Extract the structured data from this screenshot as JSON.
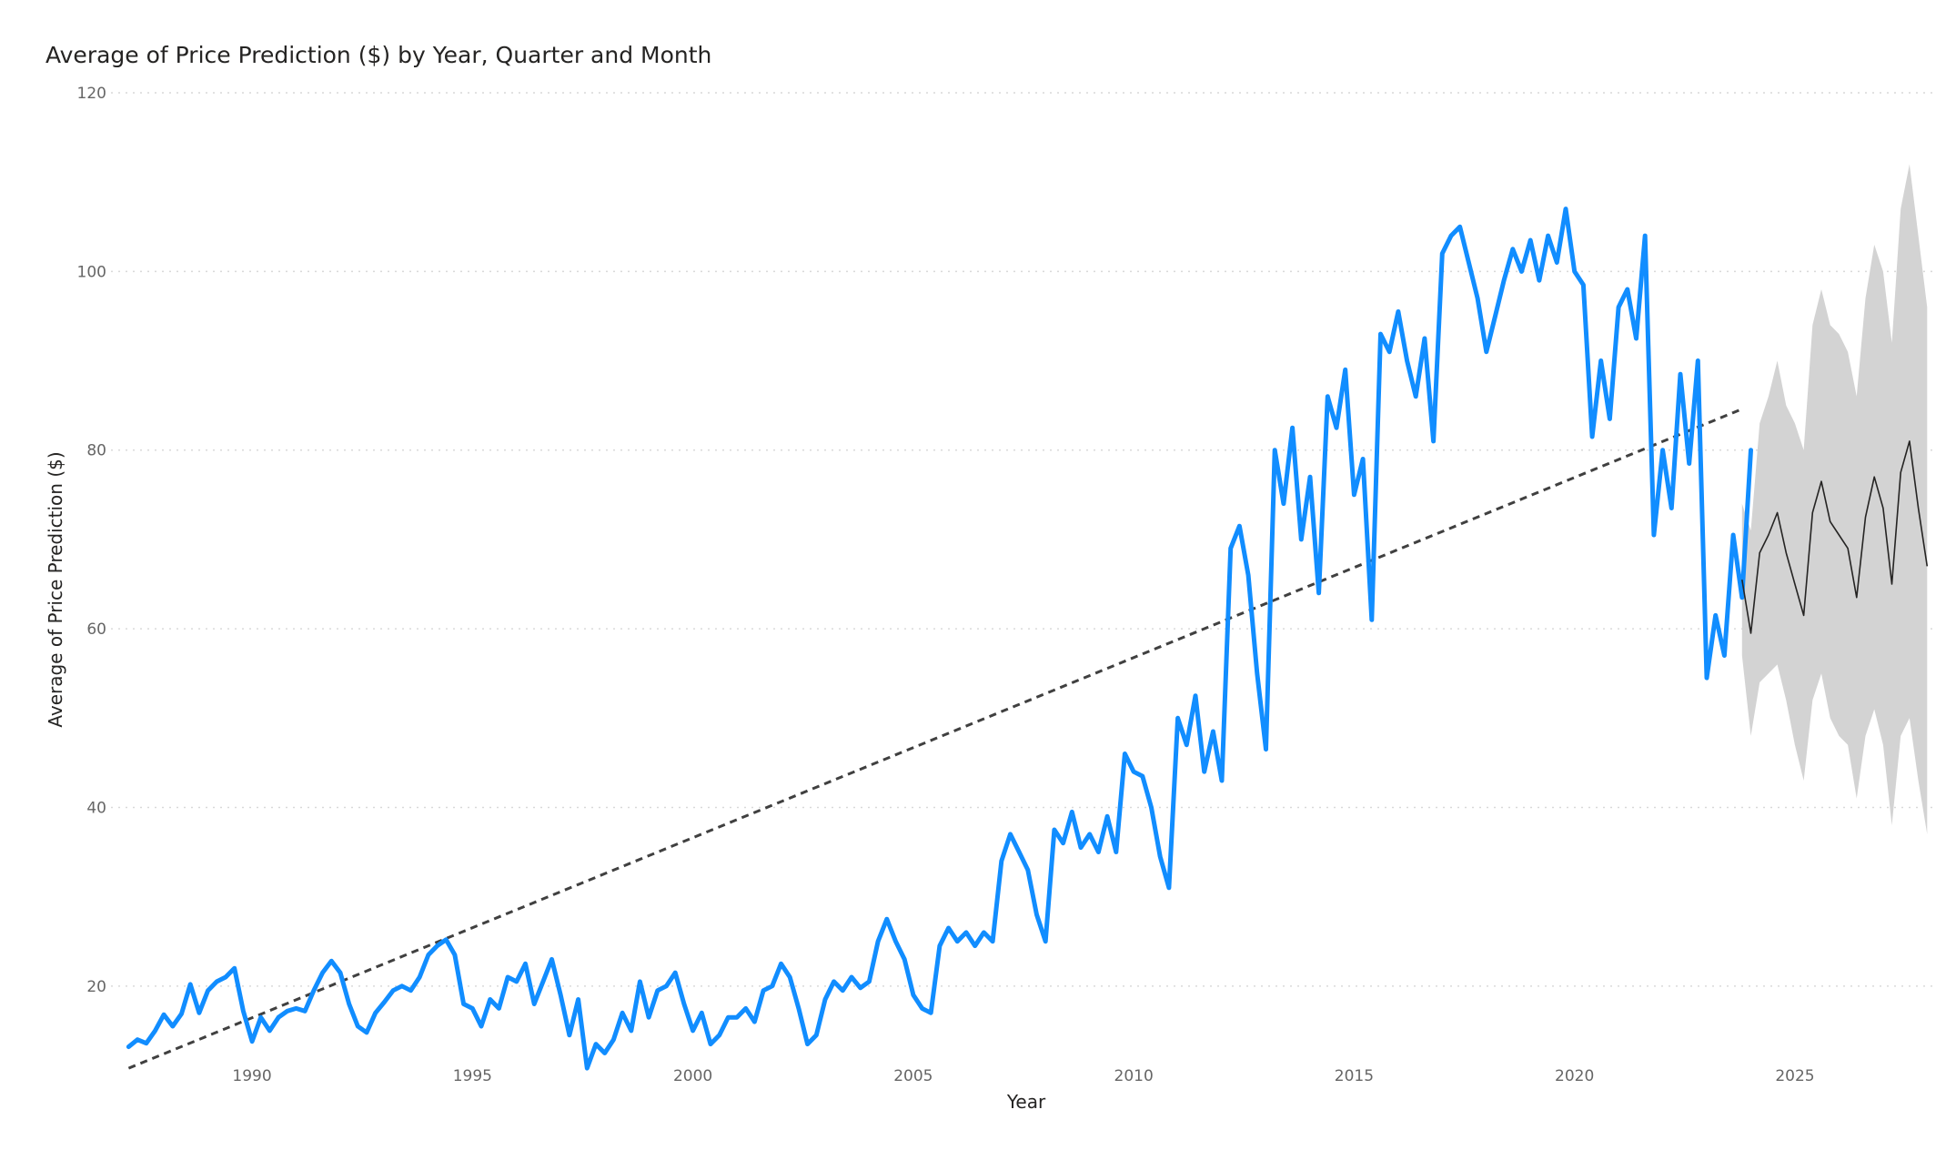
{
  "chart_data": {
    "type": "line",
    "title": "Average of Price Prediction ($) by Year, Quarter and Month",
    "xlabel": "Year",
    "ylabel": "Average of Price Prediction ($)",
    "xlim": [
      1986.8,
      2028.2
    ],
    "ylim": [
      10,
      120
    ],
    "x_ticks": [
      1990,
      1995,
      2000,
      2005,
      2010,
      2015,
      2020,
      2025
    ],
    "y_ticks": [
      20,
      40,
      60,
      80,
      100,
      120
    ],
    "grid": "horizontal dotted",
    "legend": "none",
    "colors": {
      "actual": "#118DFF",
      "trend": "#404040",
      "forecast": "#252423",
      "band": "#D3D3D3",
      "grid": "#D9D9D9"
    },
    "series": [
      {
        "kind": "actual",
        "points": [
          [
            1987.2,
            13.2
          ],
          [
            1987.4,
            14.0
          ],
          [
            1987.6,
            13.6
          ],
          [
            1987.8,
            15.0
          ],
          [
            1988.0,
            16.8
          ],
          [
            1988.2,
            15.5
          ],
          [
            1988.4,
            16.9
          ],
          [
            1988.6,
            20.2
          ],
          [
            1988.8,
            17.0
          ],
          [
            1989.0,
            19.5
          ],
          [
            1989.2,
            20.5
          ],
          [
            1989.4,
            21.0
          ],
          [
            1989.6,
            22.0
          ],
          [
            1989.8,
            17.2
          ],
          [
            1990.0,
            13.8
          ],
          [
            1990.2,
            16.5
          ],
          [
            1990.4,
            15.0
          ],
          [
            1990.6,
            16.5
          ],
          [
            1990.8,
            17.2
          ],
          [
            1991.0,
            17.5
          ],
          [
            1991.2,
            17.2
          ],
          [
            1991.4,
            19.5
          ],
          [
            1991.6,
            21.5
          ],
          [
            1991.8,
            22.8
          ],
          [
            1992.0,
            21.5
          ],
          [
            1992.2,
            18.0
          ],
          [
            1992.4,
            15.5
          ],
          [
            1992.6,
            14.8
          ],
          [
            1992.8,
            17.0
          ],
          [
            1993.0,
            18.2
          ],
          [
            1993.2,
            19.5
          ],
          [
            1993.4,
            20.0
          ],
          [
            1993.6,
            19.5
          ],
          [
            1993.8,
            21.0
          ],
          [
            1994.0,
            23.5
          ],
          [
            1994.2,
            24.5
          ],
          [
            1994.4,
            25.2
          ],
          [
            1994.6,
            23.5
          ],
          [
            1994.8,
            18.0
          ],
          [
            1995.0,
            17.5
          ],
          [
            1995.2,
            15.5
          ],
          [
            1995.4,
            18.5
          ],
          [
            1995.6,
            17.5
          ],
          [
            1995.8,
            21.0
          ],
          [
            1996.0,
            20.5
          ],
          [
            1996.2,
            22.5
          ],
          [
            1996.4,
            18.0
          ],
          [
            1996.6,
            20.5
          ],
          [
            1996.8,
            23.0
          ],
          [
            1997.0,
            19.0
          ],
          [
            1997.2,
            14.5
          ],
          [
            1997.4,
            18.5
          ],
          [
            1997.6,
            10.8
          ],
          [
            1997.8,
            13.5
          ],
          [
            1998.0,
            12.5
          ],
          [
            1998.2,
            14.0
          ],
          [
            1998.4,
            17.0
          ],
          [
            1998.6,
            15.0
          ],
          [
            1998.8,
            20.5
          ],
          [
            1999.0,
            16.5
          ],
          [
            1999.2,
            19.5
          ],
          [
            1999.4,
            20.0
          ],
          [
            1999.6,
            21.5
          ],
          [
            1999.8,
            18.0
          ],
          [
            2000.0,
            15.0
          ],
          [
            2000.2,
            17.0
          ],
          [
            2000.4,
            13.5
          ],
          [
            2000.6,
            14.5
          ],
          [
            2000.8,
            16.5
          ],
          [
            2001.0,
            16.5
          ],
          [
            2001.2,
            17.5
          ],
          [
            2001.4,
            16.0
          ],
          [
            2001.6,
            19.5
          ],
          [
            2001.8,
            20.0
          ],
          [
            2002.0,
            22.5
          ],
          [
            2002.2,
            21.0
          ],
          [
            2002.4,
            17.5
          ],
          [
            2002.6,
            13.5
          ],
          [
            2002.8,
            14.5
          ],
          [
            2003.0,
            18.5
          ],
          [
            2003.2,
            20.5
          ],
          [
            2003.4,
            19.5
          ],
          [
            2003.6,
            21.0
          ],
          [
            2003.8,
            19.8
          ],
          [
            2004.0,
            20.5
          ],
          [
            2004.2,
            25.0
          ],
          [
            2004.4,
            27.5
          ],
          [
            2004.6,
            25.0
          ],
          [
            2004.8,
            23.0
          ],
          [
            2005.0,
            19.0
          ],
          [
            2005.2,
            17.5
          ],
          [
            2005.4,
            17.0
          ],
          [
            2005.6,
            24.5
          ],
          [
            2005.8,
            26.5
          ],
          [
            2006.0,
            25.0
          ],
          [
            2006.2,
            26.0
          ],
          [
            2006.4,
            24.5
          ],
          [
            2006.6,
            26.0
          ],
          [
            2006.8,
            25.0
          ],
          [
            2007.0,
            34.0
          ],
          [
            2007.2,
            37.0
          ],
          [
            2007.4,
            35.0
          ],
          [
            2007.6,
            33.0
          ],
          [
            2007.8,
            28.0
          ],
          [
            2008.0,
            25.0
          ],
          [
            2008.2,
            37.5
          ],
          [
            2008.4,
            36.0
          ],
          [
            2008.6,
            39.5
          ],
          [
            2008.8,
            35.5
          ],
          [
            2009.0,
            37.0
          ],
          [
            2009.2,
            35.0
          ],
          [
            2009.4,
            39.0
          ],
          [
            2009.6,
            35.0
          ],
          [
            2009.8,
            46.0
          ],
          [
            2010.0,
            44.0
          ],
          [
            2010.2,
            43.5
          ],
          [
            2010.4,
            40.0
          ],
          [
            2010.6,
            34.5
          ],
          [
            2010.8,
            31.0
          ],
          [
            2011.0,
            50.0
          ],
          [
            2011.2,
            47.0
          ],
          [
            2011.4,
            52.5
          ],
          [
            2011.6,
            44.0
          ],
          [
            2011.8,
            48.5
          ],
          [
            2012.0,
            43.0
          ],
          [
            2012.2,
            69.0
          ],
          [
            2012.4,
            71.5
          ],
          [
            2012.6,
            66.0
          ],
          [
            2012.8,
            55.0
          ],
          [
            2013.0,
            46.5
          ],
          [
            2013.2,
            80.0
          ],
          [
            2013.4,
            74.0
          ],
          [
            2013.6,
            82.5
          ],
          [
            2013.8,
            70.0
          ],
          [
            2014.0,
            77.0
          ],
          [
            2014.2,
            64.0
          ],
          [
            2014.4,
            86.0
          ],
          [
            2014.6,
            82.5
          ],
          [
            2014.8,
            89.0
          ],
          [
            2015.0,
            75.0
          ],
          [
            2015.2,
            79.0
          ],
          [
            2015.4,
            61.0
          ],
          [
            2015.6,
            93.0
          ],
          [
            2015.8,
            91.0
          ],
          [
            2016.0,
            95.5
          ],
          [
            2016.2,
            90.0
          ],
          [
            2016.4,
            86.0
          ],
          [
            2016.6,
            92.5
          ],
          [
            2016.8,
            81.0
          ],
          [
            2017.0,
            102.0
          ],
          [
            2017.2,
            104.0
          ],
          [
            2017.4,
            105.0
          ],
          [
            2017.6,
            101.0
          ],
          [
            2017.8,
            97.0
          ],
          [
            2018.0,
            91.0
          ],
          [
            2018.2,
            95.0
          ],
          [
            2018.4,
            99.0
          ],
          [
            2018.6,
            102.5
          ],
          [
            2018.8,
            100.0
          ],
          [
            2019.0,
            103.5
          ],
          [
            2019.2,
            99.0
          ],
          [
            2019.4,
            104.0
          ],
          [
            2019.6,
            101.0
          ],
          [
            2019.8,
            107.0
          ],
          [
            2020.0,
            100.0
          ],
          [
            2020.2,
            98.5
          ],
          [
            2020.4,
            81.5
          ],
          [
            2020.6,
            90.0
          ],
          [
            2020.8,
            83.5
          ],
          [
            2021.0,
            96.0
          ],
          [
            2021.2,
            98.0
          ],
          [
            2021.4,
            92.5
          ],
          [
            2021.6,
            104.0
          ],
          [
            2021.8,
            70.5
          ],
          [
            2022.0,
            80.0
          ],
          [
            2022.2,
            73.5
          ],
          [
            2022.4,
            88.5
          ],
          [
            2022.6,
            78.5
          ],
          [
            2022.8,
            90.0
          ],
          [
            2023.0,
            54.5
          ],
          [
            2023.2,
            61.5
          ],
          [
            2023.4,
            57.0
          ],
          [
            2023.6,
            70.5
          ],
          [
            2023.8,
            63.5
          ],
          [
            2024.0,
            80.0
          ]
        ]
      },
      {
        "kind": "forecast",
        "points": [
          [
            2023.8,
            65.5
          ],
          [
            2024.0,
            59.5
          ],
          [
            2024.2,
            68.5
          ],
          [
            2024.4,
            70.5
          ],
          [
            2024.6,
            73.0
          ],
          [
            2024.8,
            68.5
          ],
          [
            2025.0,
            65.0
          ],
          [
            2025.2,
            61.5
          ],
          [
            2025.4,
            73.0
          ],
          [
            2025.6,
            76.5
          ],
          [
            2025.8,
            72.0
          ],
          [
            2026.0,
            70.5
          ],
          [
            2026.2,
            69.0
          ],
          [
            2026.4,
            63.5
          ],
          [
            2026.6,
            72.5
          ],
          [
            2026.8,
            77.0
          ],
          [
            2027.0,
            73.5
          ],
          [
            2027.2,
            65.0
          ],
          [
            2027.4,
            77.5
          ],
          [
            2027.6,
            81.0
          ],
          [
            2027.8,
            73.5
          ],
          [
            2028.0,
            67.0
          ]
        ]
      },
      {
        "kind": "trend",
        "points": [
          [
            1987.2,
            10.8
          ],
          [
            2023.8,
            84.6
          ]
        ]
      }
    ],
    "confidence_band": {
      "x": [
        2023.8,
        2024.0,
        2024.2,
        2024.4,
        2024.6,
        2024.8,
        2025.0,
        2025.2,
        2025.4,
        2025.6,
        2025.8,
        2026.0,
        2026.2,
        2026.4,
        2026.6,
        2026.8,
        2027.0,
        2027.2,
        2027.4,
        2027.6,
        2027.8,
        2028.0
      ],
      "upper": [
        74.0,
        71.0,
        83.0,
        86.0,
        90.0,
        85.0,
        83.0,
        80.0,
        94.0,
        98.0,
        94.0,
        93.0,
        91.0,
        86.0,
        97.0,
        103.0,
        100.0,
        92.0,
        107.0,
        112.0,
        104.0,
        96.0
      ],
      "lower": [
        57.0,
        48.0,
        54.0,
        55.0,
        56.0,
        52.0,
        47.0,
        43.0,
        52.0,
        55.0,
        50.0,
        48.0,
        47.0,
        41.0,
        48.0,
        51.0,
        47.0,
        38.0,
        48.0,
        50.0,
        43.0,
        37.0
      ]
    }
  }
}
